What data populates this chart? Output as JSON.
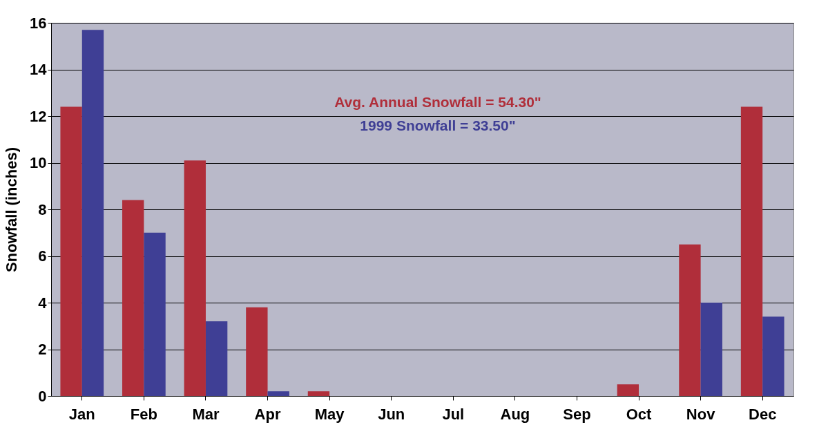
{
  "chart_data": {
    "type": "bar",
    "ylabel": "Snowfall (inches)",
    "categories": [
      "Jan",
      "Feb",
      "Mar",
      "Apr",
      "May",
      "Jun",
      "Jul",
      "Aug",
      "Sep",
      "Oct",
      "Nov",
      "Dec"
    ],
    "series": [
      {
        "color": "#b02e3a",
        "values": [
          12.4,
          8.4,
          10.1,
          3.8,
          0.2,
          0,
          0,
          0,
          0,
          0.5,
          6.5,
          12.4
        ]
      },
      {
        "color": "#3f3f95",
        "values": [
          15.7,
          7.0,
          3.2,
          0.2,
          0,
          0,
          0,
          0,
          0,
          0,
          4.0,
          3.4
        ]
      }
    ],
    "ylim": [
      0,
      16
    ],
    "yticks": [
      0,
      2,
      4,
      6,
      8,
      10,
      12,
      14,
      16
    ],
    "grid": "y",
    "legend": false,
    "annotations": [
      "Avg. Annual Snowfall = 54.30\"",
      "1999 Snowfall = 33.50\""
    ]
  }
}
